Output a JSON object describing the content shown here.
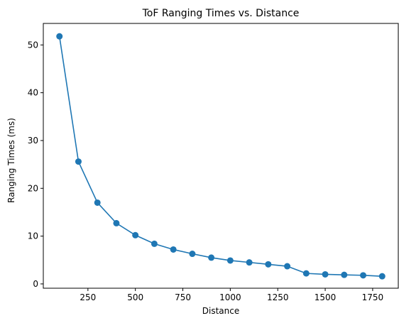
{
  "chart_data": {
    "type": "line",
    "title": "ToF Ranging Times vs. Distance",
    "xlabel": "Distance",
    "ylabel": "Ranging Times (ms)",
    "x": [
      100,
      200,
      300,
      400,
      500,
      600,
      700,
      800,
      900,
      1000,
      1100,
      1200,
      1300,
      1400,
      1500,
      1600,
      1700,
      1800
    ],
    "series": [
      {
        "values": [
          51.8,
          25.6,
          17.0,
          12.7,
          10.2,
          8.4,
          7.2,
          6.3,
          5.5,
          4.9,
          4.5,
          4.1,
          3.7,
          2.2,
          2.0,
          1.9,
          1.8,
          1.6
        ],
        "color": "#1f77b4",
        "marker": "circle"
      }
    ],
    "xlim": [
      15,
      1885
    ],
    "ylim": [
      -0.9,
      54.5
    ],
    "xticks": [
      250,
      500,
      750,
      1000,
      1250,
      1500,
      1750
    ],
    "yticks": [
      0,
      10,
      20,
      30,
      40,
      50
    ],
    "xtick_labels": [
      "250",
      "500",
      "750",
      "1000",
      "1250",
      "1500",
      "1750"
    ],
    "ytick_labels": [
      "0",
      "10",
      "20",
      "30",
      "40",
      "50"
    ],
    "grid": false,
    "legend": false
  }
}
